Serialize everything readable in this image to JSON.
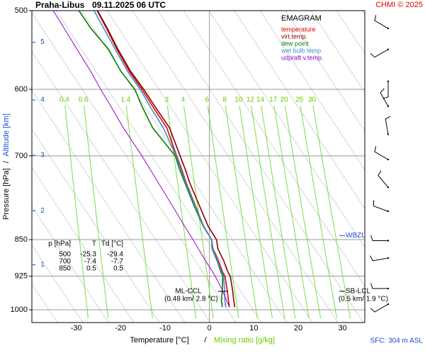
{
  "chart_data": {
    "type": "emagram",
    "title": "Praha-Libus",
    "subtitle": "09.11.2025 06 UTC",
    "copyright": "CHMI © 2025",
    "legend_title": "EMAGRAM",
    "xlabel": "Temperature [°C]",
    "xlabel_sep": "/",
    "xlabel2": "Mixing ratio [g/kg]",
    "ylabel": "Pressure [hPa]",
    "ylabel_sep": "/",
    "ylabel2": "Altitude [km]",
    "xlim": [
      -40,
      35
    ],
    "xticks": [
      -30,
      -20,
      -10,
      0,
      10,
      20,
      30
    ],
    "ylim": [
      1030,
      500
    ],
    "yticks": [
      500,
      600,
      700,
      850,
      925,
      1000
    ],
    "y_scale": "log",
    "grid": true,
    "altitude_ticks": [
      5,
      4,
      3,
      2,
      1
    ],
    "altitude_tick_pressures": [
      538,
      615,
      699,
      795,
      901
    ],
    "mixing_ratios": [
      0.4,
      0.6,
      1.4,
      3,
      4,
      6,
      8,
      10,
      12,
      14,
      17,
      20,
      25,
      30
    ],
    "mixing_ratio_color": "#77dd44",
    "pressure": [
      500,
      521,
      547,
      575,
      600,
      624,
      656,
      700,
      723,
      744,
      785,
      824,
      850,
      868,
      894,
      917,
      925,
      955,
      980,
      994
    ],
    "series": [
      {
        "name": "temperature",
        "color": "#e00000",
        "values": [
          -25.3,
          -23.2,
          -20.8,
          -18.1,
          -15.2,
          -12.8,
          -9.6,
          -7.4,
          -6.2,
          -5.3,
          -3.2,
          -1.3,
          0.5,
          0.8,
          2.1,
          3.0,
          3.5,
          4.0,
          4.3,
          4.5
        ]
      },
      {
        "name": "virt.temp.",
        "color": "#8b0000",
        "values": [
          -25.2,
          -23.0,
          -20.6,
          -17.8,
          -14.8,
          -12.3,
          -9.0,
          -6.6,
          -5.4,
          -4.5,
          -2.3,
          -0.3,
          1.6,
          1.9,
          3.3,
          4.2,
          4.7,
          5.2,
          5.5,
          5.7
        ]
      },
      {
        "name": "dew point",
        "color": "#008000",
        "values": [
          -29.4,
          -26.7,
          -22.7,
          -20.0,
          -16.8,
          -15.2,
          -12.8,
          -7.7,
          -6.7,
          -5.6,
          -3.5,
          -1.4,
          0.5,
          0.6,
          1.8,
          2.6,
          3.0,
          2.9,
          2.7,
          2.9
        ]
      },
      {
        "name": "wet bulb temp.",
        "color": "#3a8fd0",
        "values": [
          -26.0,
          -23.8,
          -21.2,
          -18.5,
          -15.6,
          -13.4,
          -10.4,
          -7.5,
          -6.4,
          -5.4,
          -3.3,
          -1.3,
          0.5,
          0.7,
          1.9,
          2.8,
          3.2,
          3.4,
          3.5,
          3.7
        ]
      },
      {
        "name": "udpraft v.temp.",
        "color": "#9900cc",
        "values": [
          -35.2,
          -32.7,
          -29.8,
          -26.8,
          -24.5,
          -22.2,
          -19.4,
          -15.2,
          -13.3,
          -11.6,
          -8.4,
          -5.6,
          -3.7,
          -2.5,
          -0.8,
          0.8,
          1.3,
          2.9,
          3.9,
          4.5
        ]
      }
    ],
    "table": {
      "header": [
        "p [hPa]",
        "T",
        "Td [°C]"
      ],
      "rows": [
        [
          500,
          -25.3,
          -29.4
        ],
        [
          700,
          -7.4,
          -7.7
        ],
        [
          850,
          0.5,
          0.5
        ]
      ]
    },
    "annotations": [
      {
        "text": "ML-CCL",
        "detail": "(0.48 km/ 2.8 °C)",
        "pressure": 958
      },
      {
        "text": "SB-LCL",
        "detail": "(0.5 km/ 1.9 °C)",
        "pressure": 958
      },
      {
        "text": "WBZL",
        "pressure": 842
      }
    ],
    "surface": "SFC: 304 m ASL",
    "wind": {
      "pressure": [
        521,
        547,
        589,
        624,
        666,
        706,
        753,
        796,
        852,
        887,
        952,
        987
      ],
      "direction": [
        300,
        240,
        180,
        330,
        350,
        300,
        320,
        290,
        270,
        260,
        270,
        240
      ]
    }
  }
}
